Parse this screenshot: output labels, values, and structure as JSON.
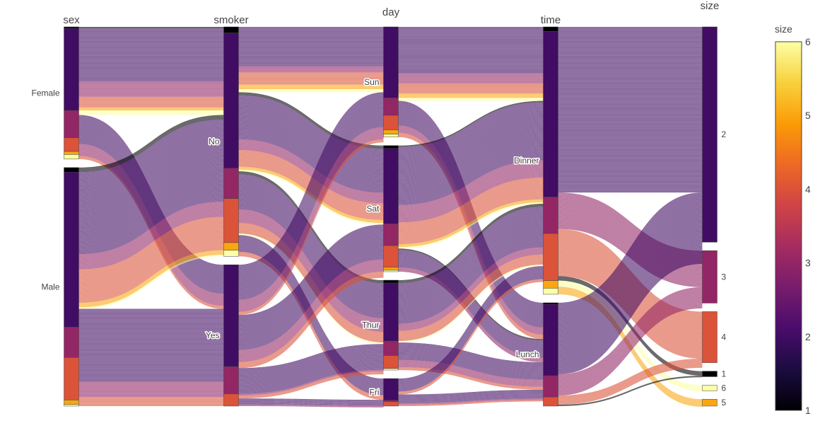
{
  "chart_data": {
    "type": "parallel_categories",
    "title": "",
    "color_by": "size",
    "dimensions": [
      {
        "name": "sex",
        "categories": [
          "Female",
          "Male"
        ]
      },
      {
        "name": "smoker",
        "categories": [
          "No",
          "Yes"
        ]
      },
      {
        "name": "day",
        "categories": [
          "Sun",
          "Sat",
          "Thur",
          "Fri"
        ]
      },
      {
        "name": "time",
        "categories": [
          "Dinner",
          "Lunch"
        ]
      },
      {
        "name": "size",
        "categories": [
          "2",
          "3",
          "4",
          "1",
          "6",
          "5"
        ]
      }
    ],
    "category_counts": {
      "sex": {
        "Female": 87,
        "Male": 157
      },
      "smoker": {
        "No": 151,
        "Yes": 93
      },
      "day": {
        "Sun": 76,
        "Sat": 87,
        "Thur": 62,
        "Fri": 19
      },
      "time": {
        "Dinner": 176,
        "Lunch": 68
      },
      "size": {
        "2": 156,
        "3": 38,
        "4": 37,
        "1": 4,
        "6": 4,
        "5": 5
      }
    },
    "colorbar": {
      "title": "size",
      "range": [
        1,
        6
      ],
      "ticks": [
        1,
        2,
        3,
        4,
        5,
        6
      ],
      "colorscale": [
        "#000004",
        "#1b0c41",
        "#4a0c6b",
        "#781c6d",
        "#a52c60",
        "#cf4446",
        "#ed6925",
        "#fb9b06",
        "#f7d13d",
        "#fcffa4"
      ]
    },
    "line_opacity": 0.6
  }
}
